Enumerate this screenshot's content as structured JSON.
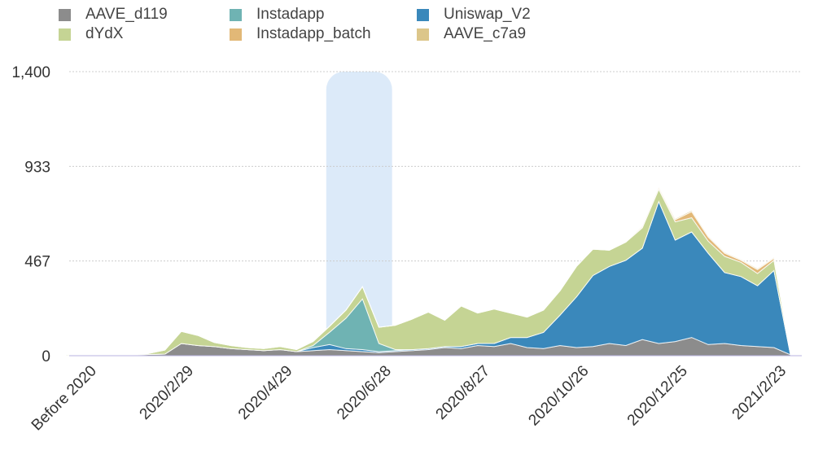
{
  "chart_data": {
    "type": "area",
    "stacked": true,
    "title": "",
    "xlabel": "",
    "ylabel": "",
    "ylim": [
      0,
      1400
    ],
    "yticks": [
      "0",
      "467",
      "933",
      "1,400"
    ],
    "ytick_values": [
      0,
      467,
      933,
      1400
    ],
    "xticks": [
      {
        "label": "Before 2020",
        "date": "2020-01-01"
      },
      {
        "label": "2020/2/29",
        "date": "2020-02-29"
      },
      {
        "label": "2020/4/29",
        "date": "2020-04-29"
      },
      {
        "label": "2020/6/28",
        "date": "2020-06-28"
      },
      {
        "label": "2020/8/27",
        "date": "2020-08-27"
      },
      {
        "label": "2020/10/26",
        "date": "2020-10-26"
      },
      {
        "label": "2020/12/25",
        "date": "2020-12-25"
      },
      {
        "label": "2021/2/23",
        "date": "2021-02-23"
      }
    ],
    "grid": true,
    "legend_position": "top",
    "highlight": {
      "from": "2020-05-20",
      "to": "2020-06-29",
      "color": "#dceaf9"
    },
    "x": [
      "2019-12-14",
      "2019-12-24",
      "2020-01-03",
      "2020-01-13",
      "2020-01-23",
      "2020-02-02",
      "2020-02-12",
      "2020-02-22",
      "2020-03-03",
      "2020-03-13",
      "2020-03-23",
      "2020-04-02",
      "2020-04-12",
      "2020-04-22",
      "2020-05-02",
      "2020-05-12",
      "2020-05-22",
      "2020-06-01",
      "2020-06-11",
      "2020-06-21",
      "2020-07-01",
      "2020-07-11",
      "2020-07-21",
      "2020-07-31",
      "2020-08-10",
      "2020-08-20",
      "2020-08-30",
      "2020-09-09",
      "2020-09-19",
      "2020-09-29",
      "2020-10-09",
      "2020-10-19",
      "2020-10-29",
      "2020-11-08",
      "2020-11-18",
      "2020-11-28",
      "2020-12-08",
      "2020-12-18",
      "2020-12-28",
      "2021-01-07",
      "2021-01-17",
      "2021-01-27",
      "2021-02-06",
      "2021-02-16",
      "2021-02-26"
    ],
    "series": [
      {
        "name": "AAVE_d119",
        "color": "#8c8c8c",
        "values": [
          0,
          0,
          1,
          3,
          4,
          6,
          8,
          60,
          50,
          45,
          35,
          30,
          25,
          30,
          20,
          25,
          30,
          25,
          20,
          15,
          20,
          25,
          30,
          40,
          35,
          50,
          45,
          60,
          40,
          35,
          50,
          40,
          45,
          60,
          50,
          80,
          60,
          70,
          90,
          55,
          60,
          50,
          45,
          40,
          5
        ]
      },
      {
        "name": "Instadapp",
        "color": "#6fb3b3",
        "values": [
          0,
          0,
          0,
          0,
          0,
          0,
          0,
          0,
          0,
          0,
          0,
          0,
          0,
          0,
          0,
          10,
          60,
          150,
          250,
          40,
          5,
          0,
          0,
          0,
          0,
          0,
          0,
          0,
          0,
          0,
          0,
          0,
          0,
          0,
          0,
          0,
          0,
          0,
          0,
          0,
          0,
          0,
          0,
          0,
          0
        ]
      },
      {
        "name": "Uniswap_V2",
        "color": "#3a88bb",
        "values": [
          0,
          0,
          0,
          0,
          0,
          0,
          0,
          0,
          0,
          0,
          0,
          0,
          0,
          0,
          0,
          15,
          25,
          10,
          10,
          5,
          5,
          5,
          5,
          5,
          10,
          10,
          15,
          30,
          50,
          80,
          150,
          250,
          350,
          380,
          420,
          450,
          700,
          500,
          520,
          450,
          350,
          340,
          300,
          380,
          0
        ]
      },
      {
        "name": "dYdX",
        "color": "#c5d494",
        "values": [
          5,
          0,
          0,
          0,
          0,
          5,
          20,
          60,
          50,
          20,
          15,
          10,
          10,
          15,
          10,
          20,
          30,
          40,
          60,
          80,
          120,
          150,
          180,
          130,
          200,
          150,
          170,
          120,
          100,
          110,
          120,
          150,
          130,
          80,
          90,
          100,
          60,
          90,
          70,
          60,
          80,
          70,
          60,
          50,
          5
        ]
      },
      {
        "name": "Instadapp_batch",
        "color": "#e2b877",
        "values": [
          0,
          0,
          0,
          0,
          0,
          0,
          0,
          0,
          0,
          0,
          0,
          0,
          0,
          0,
          0,
          0,
          0,
          0,
          0,
          0,
          0,
          0,
          0,
          0,
          0,
          0,
          0,
          0,
          0,
          0,
          0,
          0,
          0,
          0,
          0,
          5,
          5,
          10,
          30,
          20,
          15,
          10,
          20,
          10,
          0
        ]
      },
      {
        "name": "AAVE_c7a9",
        "color": "#dcc68a",
        "values": [
          0,
          0,
          0,
          0,
          0,
          0,
          0,
          0,
          0,
          0,
          0,
          0,
          0,
          0,
          0,
          0,
          0,
          0,
          0,
          0,
          0,
          0,
          0,
          0,
          0,
          0,
          0,
          0,
          0,
          0,
          0,
          0,
          0,
          0,
          0,
          3,
          4,
          5,
          6,
          5,
          5,
          4,
          5,
          4,
          0
        ]
      }
    ],
    "legend_order": [
      "AAVE_d119",
      "Instadapp",
      "Uniswap_V2",
      "dYdX",
      "Instadapp_batch",
      "AAVE_c7a9"
    ]
  }
}
